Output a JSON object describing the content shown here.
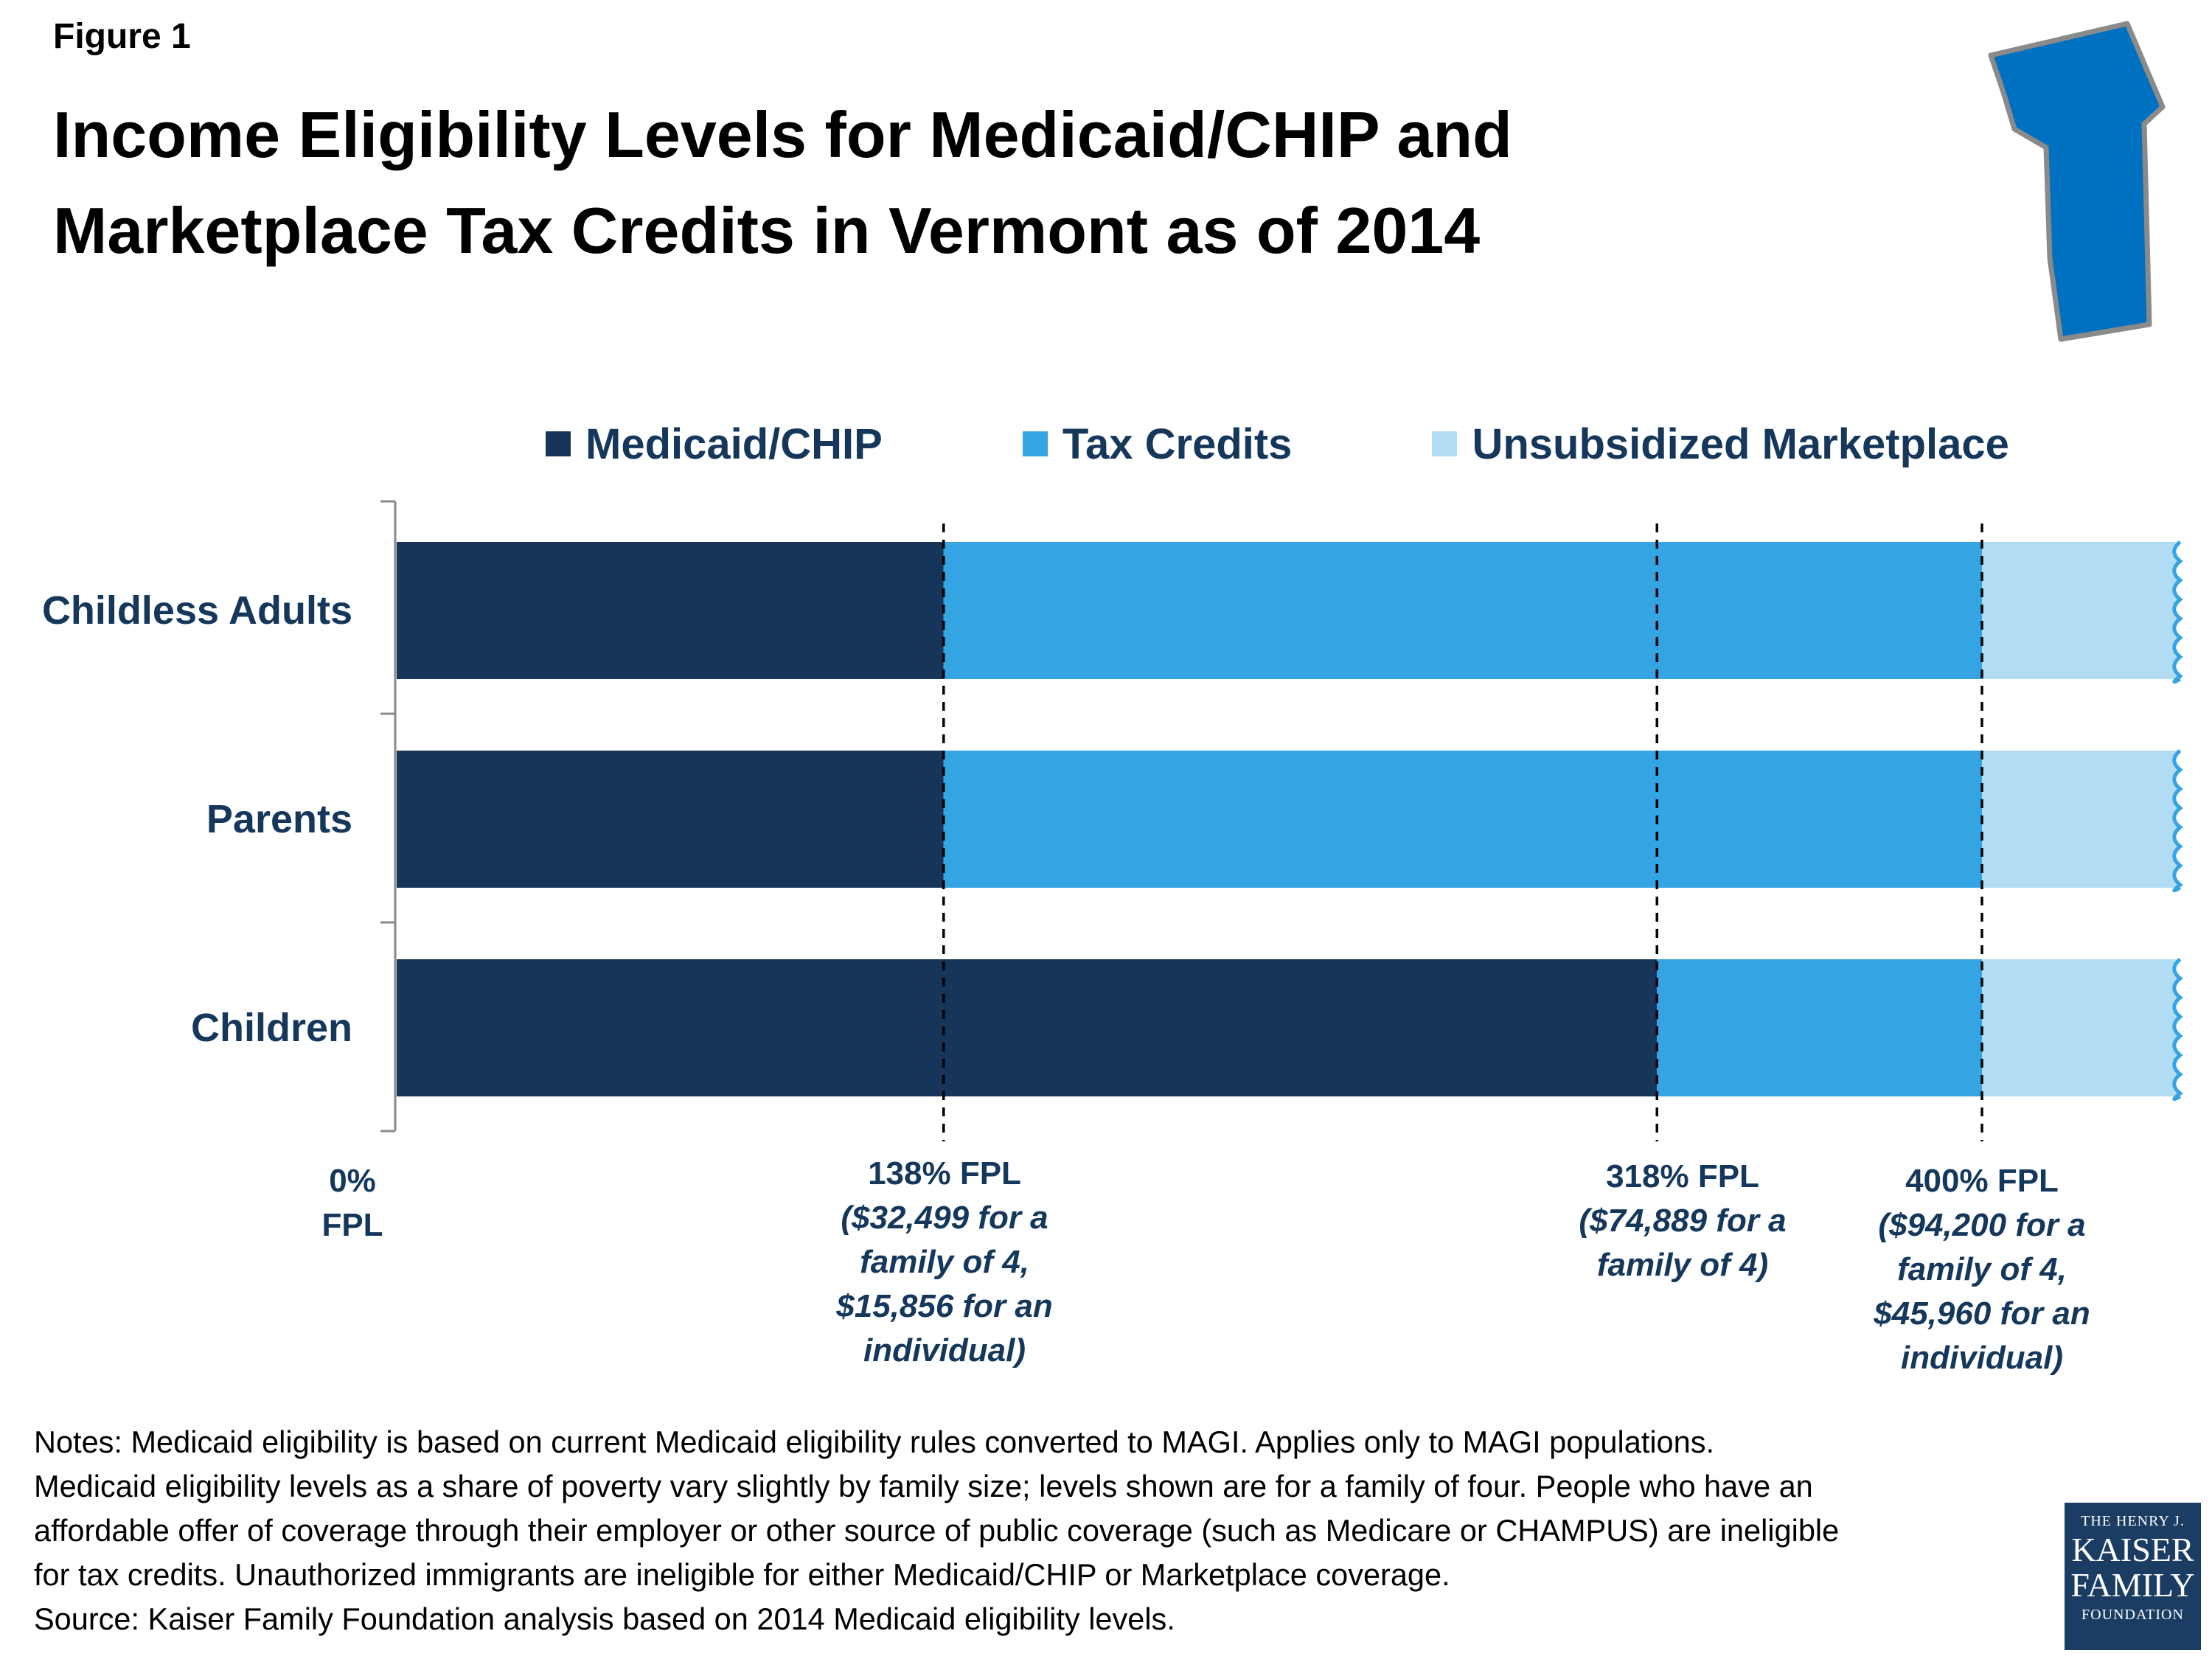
{
  "figure_label": "Figure 1",
  "title_lines": [
    "Income Eligibility Levels for Medicaid/CHIP and",
    "Marketplace Tax Credits in Vermont as of 2014"
  ],
  "chart_data": {
    "type": "bar",
    "orientation": "horizontal",
    "stacked": true,
    "title": "Income Eligibility Levels for Medicaid/CHIP and Marketplace Tax Credits in Vermont as of 2014",
    "xlabel": "",
    "ylabel": "",
    "categories": [
      "Childless Adults",
      "Parents",
      "Children"
    ],
    "series": [
      {
        "name": "Medicaid/CHIP",
        "color": "#163559",
        "values": [
          138,
          138,
          318
        ]
      },
      {
        "name": "Tax Credits",
        "color": "#34a4e2",
        "values": [
          262,
          262,
          82
        ]
      },
      {
        "name": "Unsubsidized Marketplace",
        "color": "#b1dcf3",
        "values": [
          50,
          50,
          50
        ]
      }
    ],
    "xlim": [
      0,
      450
    ],
    "grid": false,
    "legend_position": "top",
    "reference_lines": [
      {
        "x": 138,
        "lines": [
          "138% FPL",
          "($32,499 for a",
          "family of 4,",
          "$15,856 for an",
          "individual)"
        ]
      },
      {
        "x": 318,
        "lines": [
          "318% FPL",
          "($74,889 for a",
          "family of 4)"
        ]
      },
      {
        "x": 400,
        "lines": [
          "400% FPL",
          "($94,200 for a",
          "family of 4,",
          "$45,960 for an",
          "individual)"
        ]
      }
    ],
    "origin_label": [
      "0%",
      "FPL"
    ]
  },
  "notes_lines": [
    "Notes: Medicaid eligibility is based on current Medicaid eligibility rules converted to MAGI. Applies only to MAGI populations.",
    "Medicaid eligibility levels as a share of poverty vary slightly by family size; levels shown are for a family of four. People who have an",
    "affordable offer of coverage through their employer or other source of public coverage (such as Medicare or CHAMPUS) are ineligible",
    "for tax credits. Unauthorized immigrants are ineligible for either Medicaid/CHIP or Marketplace coverage.",
    "Source: Kaiser Family Foundation analysis based on 2014 Medicaid eligibility levels."
  ],
  "logo": {
    "line1": "THE HENRY J.",
    "line2": "KAISER",
    "line3": "FAMILY",
    "line4": "FOUNDATION"
  },
  "state_color": "#0070c0"
}
